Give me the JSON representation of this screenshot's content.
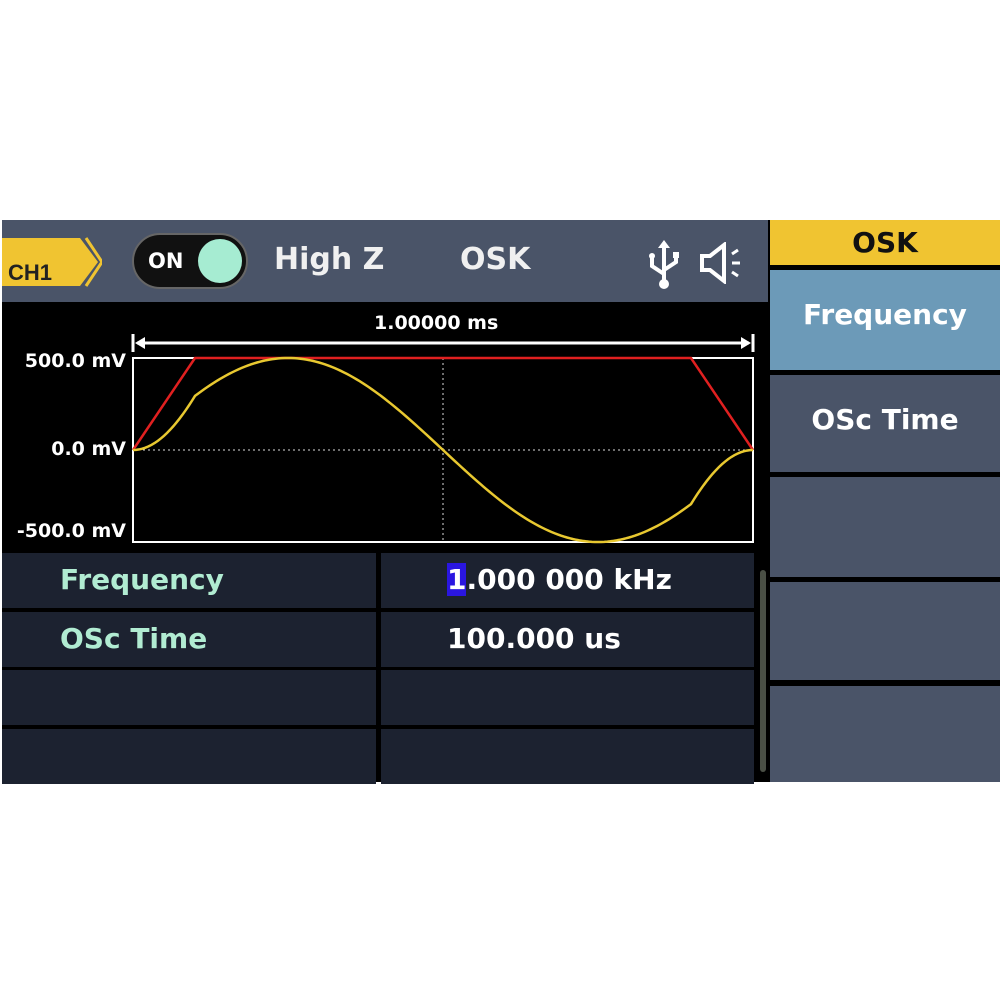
{
  "header": {
    "channel": "CH1",
    "output_state": "ON",
    "load": "High Z",
    "mode": "OSK",
    "icons": [
      "usb-icon",
      "speaker-icon"
    ]
  },
  "plot": {
    "time_span": "1.00000 ms",
    "y_labels": [
      "500.0 mV",
      "0.0 mV",
      "-500.0 mV"
    ]
  },
  "params": [
    {
      "name": "Frequency",
      "value_cursor": "1",
      "value_rest": ".000 000 kHz"
    },
    {
      "name": "OSc Time",
      "value_cursor": "",
      "value_rest": "100.000 us"
    },
    {
      "name": "",
      "value_cursor": "",
      "value_rest": ""
    },
    {
      "name": "",
      "value_cursor": "",
      "value_rest": ""
    }
  ],
  "softkeys": {
    "title": "OSK",
    "items": [
      "Frequency",
      "OSc Time",
      "",
      "",
      ""
    ],
    "selected": 0
  },
  "colors": {
    "channel": "#f0c431",
    "signal": "#e8c830",
    "envelope": "#e02020",
    "selected_key": "#6c9ab8",
    "cursor": "#2a16e0"
  },
  "chart_data": {
    "type": "line",
    "x_range_ms": [
      0,
      1
    ],
    "ylim_mV": [
      -500,
      500
    ],
    "grid": "center crosshair dotted",
    "series": [
      {
        "color": "#e02020",
        "x_ms": [
          0,
          0.1,
          0.9,
          1.0
        ],
        "y_mV": [
          0,
          500,
          500,
          0
        ]
      },
      {
        "color": "#e8c830",
        "function": "sine × envelope",
        "frequency_kHz": 1,
        "amplitude_mV": 500
      }
    ]
  }
}
